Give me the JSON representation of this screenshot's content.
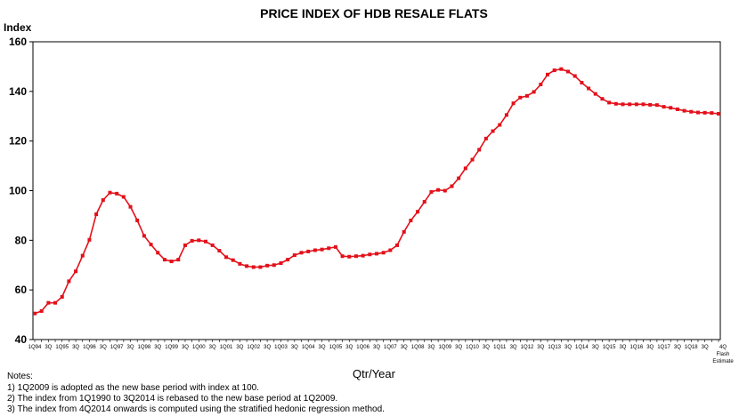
{
  "chart_data": {
    "type": "line",
    "title": "PRICE INDEX OF HDB RESALE FLATS",
    "ylabel": "Index",
    "xlabel": "Qtr/Year",
    "ylim": [
      40,
      160
    ],
    "yticks": [
      "40",
      "60",
      "80",
      "100",
      "120",
      "140",
      "160"
    ],
    "grid": false,
    "legend": "none",
    "line_color": "#e3101a",
    "xtick_labels": [
      "1Q94",
      "3Q",
      "1Q95",
      "3Q",
      "1Q96",
      "3Q",
      "1Q97",
      "3Q",
      "1Q98",
      "3Q",
      "1Q99",
      "3Q",
      "1Q00",
      "3Q",
      "1Q01",
      "3Q",
      "1Q02",
      "3Q",
      "1Q03",
      "3Q",
      "1Q04",
      "3Q",
      "1Q05",
      "3Q",
      "1Q06",
      "3Q",
      "1Q07",
      "3Q",
      "1Q08",
      "3Q",
      "1Q09",
      "3Q",
      "1Q10",
      "3Q",
      "1Q11",
      "3Q",
      "1Q12",
      "3Q",
      "1Q13",
      "3Q",
      "1Q14",
      "3Q",
      "1Q15",
      "3Q",
      "1Q16",
      "3Q",
      "1Q17",
      "3Q",
      "1Q18",
      "3Q",
      "4Q Flash Estimate"
    ],
    "series": [
      {
        "values": [
          50.5,
          51.5,
          54.8,
          54.8,
          57.2,
          63.5,
          67.5,
          73.8,
          80.2,
          90.5,
          96.2,
          99.2,
          98.8,
          97.5,
          93.5,
          88.0,
          81.8,
          78.3,
          75.0,
          72.2,
          71.5,
          72.2,
          78.0,
          79.8,
          80.0,
          79.5,
          78.0,
          75.8,
          73.2,
          72.0,
          70.5,
          69.6,
          69.2,
          69.2,
          69.8,
          70.0,
          70.8,
          72.2,
          74.0,
          75.0,
          75.5,
          76.0,
          76.3,
          76.8,
          77.3,
          73.6,
          73.4,
          73.6,
          73.8,
          74.3,
          74.6,
          75.0,
          76.0,
          78.0,
          83.4,
          88.0,
          91.5,
          95.5,
          99.5,
          100.3,
          100.0,
          101.8,
          105.0,
          109.0,
          112.5,
          116.5,
          121.0,
          124.0,
          126.5,
          130.5,
          135.2,
          137.5,
          138.2,
          139.8,
          142.8,
          146.8,
          148.5,
          149.0,
          148.0,
          146.2,
          143.5,
          141.2,
          139.0,
          137.0,
          135.5,
          135.0,
          134.8,
          134.8,
          134.8,
          134.8,
          134.6,
          134.5,
          133.8,
          133.4,
          132.8,
          132.2,
          131.8,
          131.5,
          131.4,
          131.3,
          131.0
        ]
      }
    ]
  },
  "notes": {
    "heading": "Notes:",
    "items": [
      "1) 1Q2009 is adopted as the new base period with index at 100.",
      "2) The index from 1Q1990 to 3Q2014 is rebased to the new base period at 1Q2009.",
      "3) The index from 4Q2014 onwards is computed using the stratified hedonic regression method."
    ]
  }
}
